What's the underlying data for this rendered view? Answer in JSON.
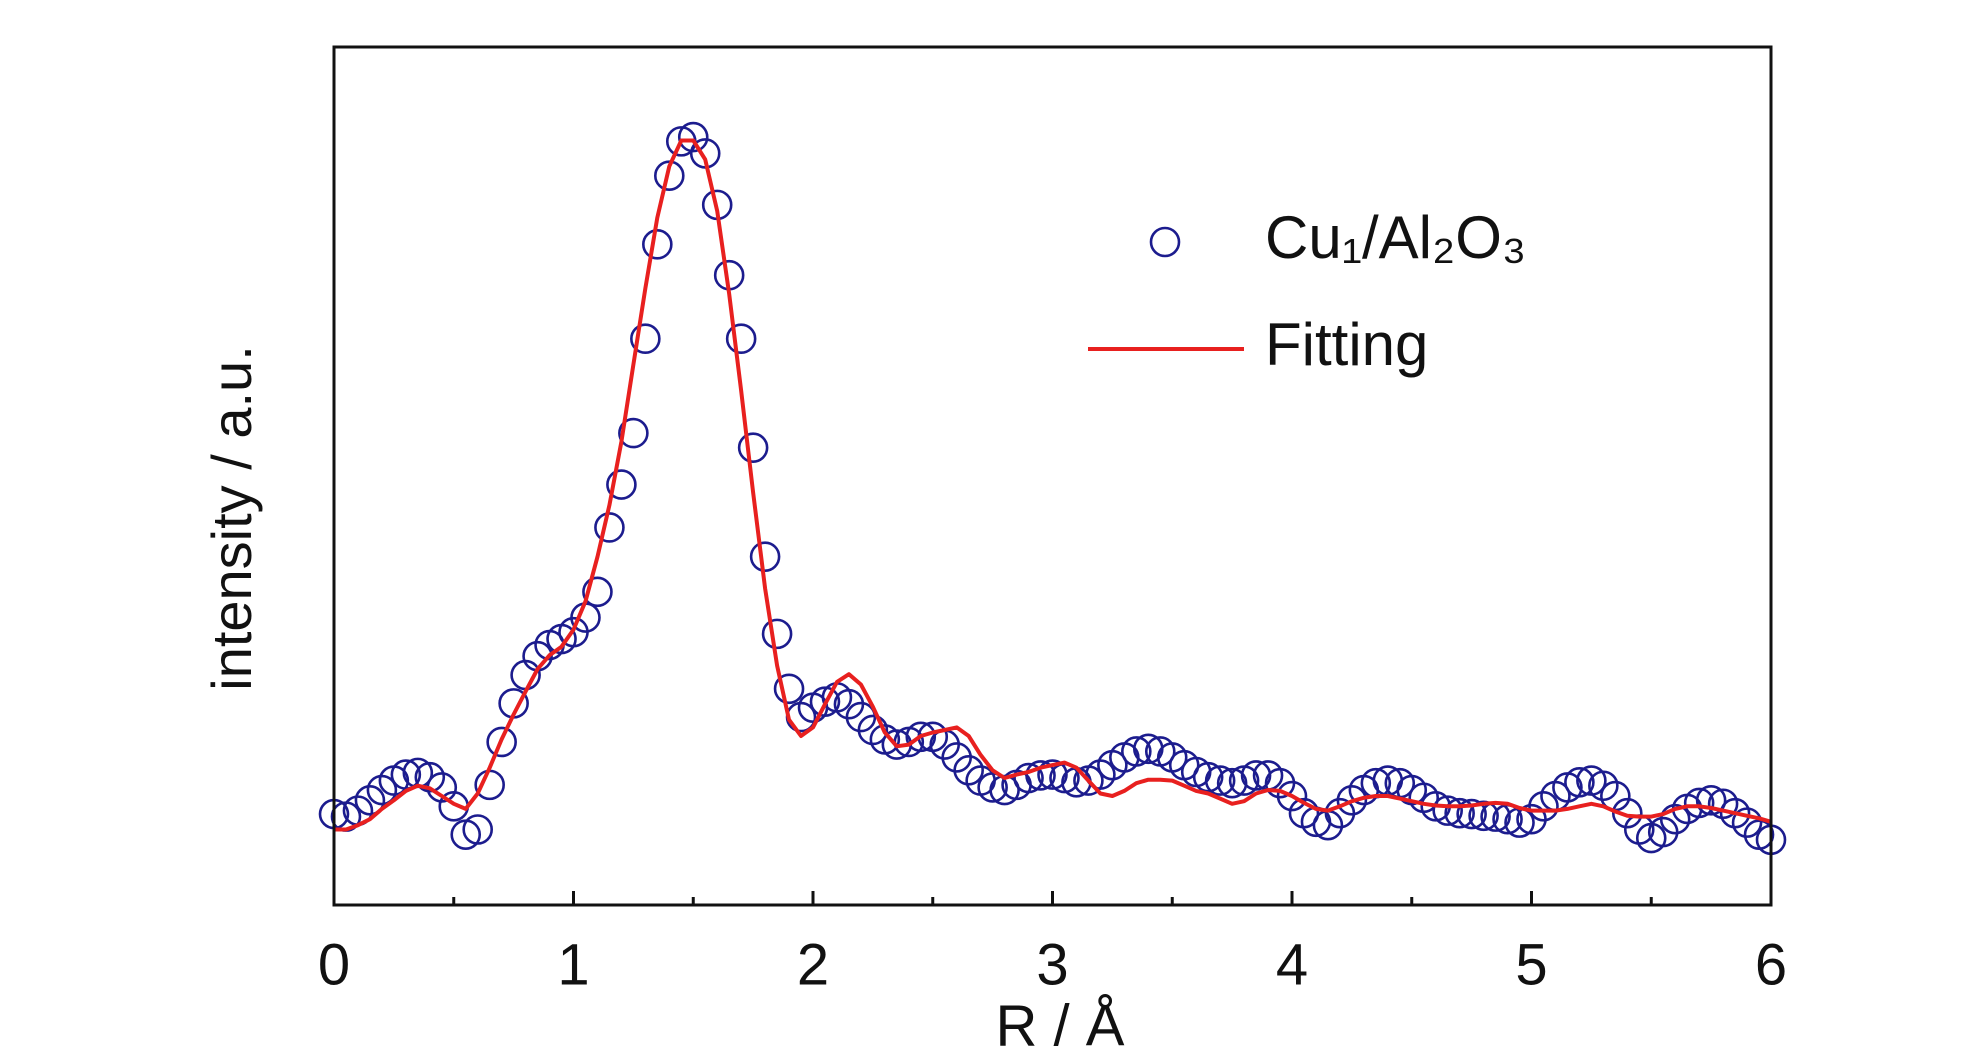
{
  "chart_data": {
    "type": "scatter_line",
    "xlabel": "R / Å",
    "ylabel": "intensity / a.u.",
    "xlim": [
      0,
      6
    ],
    "ylim": [
      0,
      1
    ],
    "xticks": [
      0,
      1,
      2,
      3,
      4,
      5,
      6
    ],
    "xticks_minor": [
      0.5,
      1.5,
      2.5,
      3.5,
      4.5,
      5.5
    ],
    "legend": "upper right",
    "x": [
      0,
      0.05,
      0.1,
      0.15,
      0.2,
      0.25,
      0.3,
      0.35,
      0.4,
      0.45,
      0.5,
      0.55,
      0.6,
      0.65,
      0.7,
      0.75,
      0.8,
      0.85,
      0.9,
      0.95,
      1,
      1.05,
      1.1,
      1.15,
      1.2,
      1.25,
      1.3,
      1.35,
      1.4,
      1.45,
      1.5,
      1.55,
      1.6,
      1.65,
      1.7,
      1.75,
      1.8,
      1.85,
      1.9,
      1.95,
      2,
      2.05,
      2.1,
      2.15,
      2.2,
      2.25,
      2.3,
      2.35,
      2.4,
      2.45,
      2.5,
      2.55,
      2.6,
      2.65,
      2.7,
      2.75,
      2.8,
      2.85,
      2.9,
      2.95,
      3,
      3.05,
      3.1,
      3.15,
      3.2,
      3.25,
      3.3,
      3.35,
      3.4,
      3.45,
      3.5,
      3.55,
      3.6,
      3.65,
      3.7,
      3.75,
      3.8,
      3.85,
      3.9,
      3.95,
      4,
      4.05,
      4.1,
      4.15,
      4.2,
      4.25,
      4.3,
      4.35,
      4.4,
      4.45,
      4.5,
      4.55,
      4.6,
      4.65,
      4.7,
      4.75,
      4.8,
      4.85,
      4.9,
      4.95,
      5,
      5.05,
      5.1,
      5.15,
      5.2,
      5.25,
      5.3,
      5.35,
      5.4,
      5.45,
      5.5,
      5.55,
      5.6,
      5.65,
      5.7,
      5.75,
      5.8,
      5.85,
      5.9,
      5.95,
      6
    ],
    "series": [
      {
        "name": "Cu₁/Al₂O₃",
        "style": "circles",
        "color": "#1c1c8e",
        "values": [
          0.106,
          0.103,
          0.11,
          0.122,
          0.134,
          0.145,
          0.152,
          0.154,
          0.149,
          0.137,
          0.115,
          0.082,
          0.088,
          0.14,
          0.19,
          0.235,
          0.268,
          0.29,
          0.303,
          0.31,
          0.318,
          0.335,
          0.365,
          0.44,
          0.49,
          0.55,
          0.66,
          0.77,
          0.85,
          0.89,
          0.895,
          0.876,
          0.816,
          0.734,
          0.66,
          0.533,
          0.406,
          0.316,
          0.252,
          0.219,
          0.23,
          0.237,
          0.242,
          0.234,
          0.219,
          0.204,
          0.193,
          0.187,
          0.19,
          0.196,
          0.196,
          0.187,
          0.172,
          0.157,
          0.145,
          0.137,
          0.134,
          0.14,
          0.148,
          0.151,
          0.152,
          0.148,
          0.143,
          0.145,
          0.152,
          0.163,
          0.172,
          0.179,
          0.182,
          0.179,
          0.172,
          0.163,
          0.155,
          0.149,
          0.145,
          0.142,
          0.145,
          0.151,
          0.151,
          0.142,
          0.127,
          0.107,
          0.097,
          0.093,
          0.107,
          0.122,
          0.134,
          0.142,
          0.145,
          0.142,
          0.134,
          0.125,
          0.115,
          0.11,
          0.107,
          0.106,
          0.104,
          0.103,
          0.1,
          0.096,
          0.1,
          0.115,
          0.127,
          0.137,
          0.143,
          0.145,
          0.139,
          0.127,
          0.107,
          0.088,
          0.078,
          0.085,
          0.1,
          0.112,
          0.119,
          0.122,
          0.118,
          0.107,
          0.096,
          0.082,
          0.076
        ]
      },
      {
        "name": "Fitting",
        "style": "line",
        "color": "#e8201f",
        "values": [
          0.088,
          0.088,
          0.093,
          0.1,
          0.112,
          0.122,
          0.133,
          0.139,
          0.136,
          0.127,
          0.118,
          0.112,
          0.13,
          0.16,
          0.193,
          0.222,
          0.249,
          0.275,
          0.291,
          0.301,
          0.321,
          0.354,
          0.406,
          0.466,
          0.54,
          0.63,
          0.719,
          0.801,
          0.861,
          0.891,
          0.891,
          0.869,
          0.809,
          0.712,
          0.6,
          0.481,
          0.369,
          0.279,
          0.216,
          0.197,
          0.207,
          0.234,
          0.26,
          0.269,
          0.257,
          0.231,
          0.201,
          0.185,
          0.187,
          0.197,
          0.201,
          0.204,
          0.207,
          0.197,
          0.175,
          0.157,
          0.148,
          0.152,
          0.155,
          0.16,
          0.163,
          0.166,
          0.16,
          0.145,
          0.13,
          0.127,
          0.133,
          0.142,
          0.146,
          0.146,
          0.145,
          0.139,
          0.133,
          0.13,
          0.124,
          0.118,
          0.121,
          0.13,
          0.134,
          0.133,
          0.127,
          0.119,
          0.112,
          0.11,
          0.115,
          0.121,
          0.125,
          0.127,
          0.127,
          0.124,
          0.121,
          0.118,
          0.116,
          0.115,
          0.115,
          0.116,
          0.118,
          0.119,
          0.118,
          0.113,
          0.11,
          0.11,
          0.11,
          0.112,
          0.115,
          0.118,
          0.115,
          0.109,
          0.104,
          0.103,
          0.103,
          0.106,
          0.112,
          0.115,
          0.115,
          0.113,
          0.11,
          0.107,
          0.104,
          0.101,
          0.097
        ]
      }
    ]
  }
}
